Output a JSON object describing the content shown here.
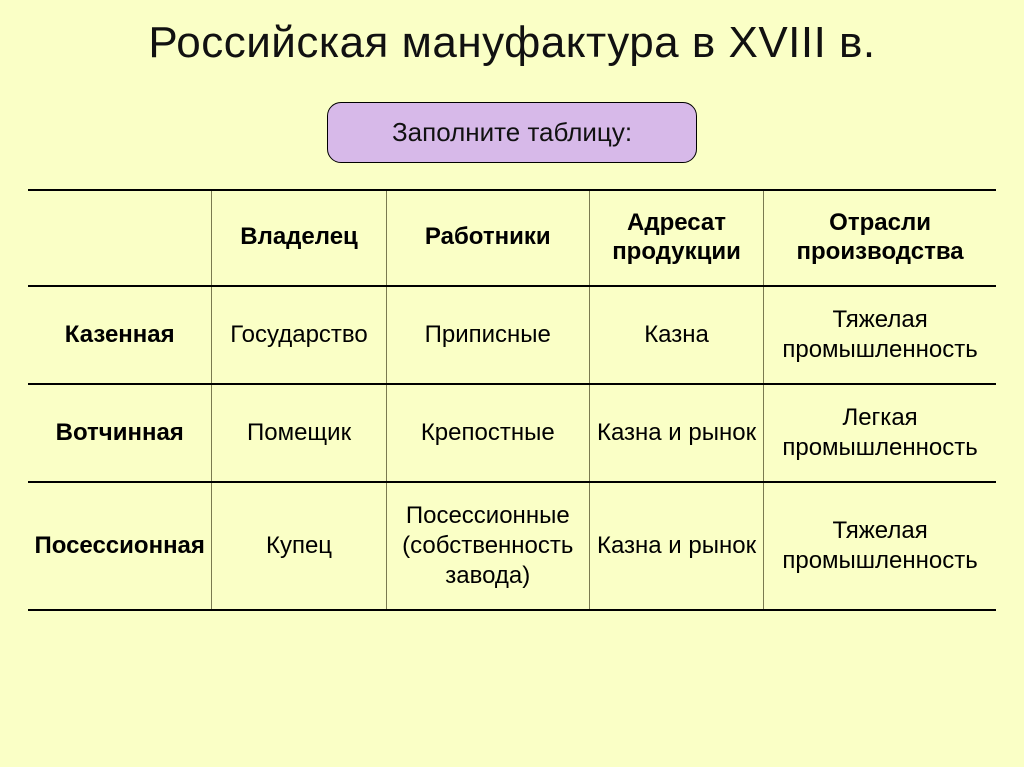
{
  "colors": {
    "background": "#faffc6",
    "callout_bg": "#d7b9e9",
    "callout_border": "#000000",
    "table_border_strong": "#000000",
    "table_border_light": "#7a7a50",
    "text": "#000000"
  },
  "typography": {
    "font_family": "Arial",
    "title_fontsize": 44,
    "callout_fontsize": 26,
    "header_fontsize": 24,
    "cell_fontsize": 24
  },
  "title": "Российская мануфактура в XVIII в.",
  "callout": "Заполните таблицу:",
  "table": {
    "type": "table",
    "columns": [
      "",
      "Владелец",
      "Работники",
      "Адресат продукции",
      "Отрасли производства"
    ],
    "rows": [
      [
        "Казенная",
        "Государство",
        "Приписные",
        "Казна",
        "Тяжелая промышленность"
      ],
      [
        "Вотчинная",
        "Помещик",
        "Крепостные",
        "Казна и рынок",
        "Легкая промышленность"
      ],
      [
        "Посессионная",
        "Купец",
        "Посессионные (собственность завода)",
        "Казна и рынок",
        "Тяжелая промышленность"
      ]
    ],
    "column_widths_pct": [
      19,
      18,
      21,
      18,
      24
    ],
    "row_label_bold": true,
    "header_bold": true
  }
}
